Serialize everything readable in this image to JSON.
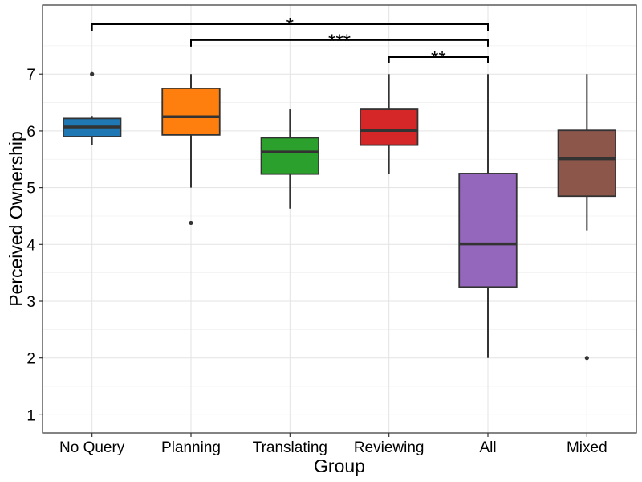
{
  "chart_data": {
    "type": "boxplot",
    "title": "",
    "xlabel": "Group",
    "ylabel": "Perceived Ownership",
    "ylim": [
      0.68,
      8.22
    ],
    "yticks": [
      1,
      2,
      3,
      4,
      5,
      6,
      7
    ],
    "grid": true,
    "legend": "none",
    "categories": [
      "No Query",
      "Planning",
      "Translating",
      "Reviewing",
      "All",
      "Mixed"
    ],
    "series": [
      {
        "category": "No Query",
        "color": "#1f77b4",
        "whisker_low": 5.75,
        "q1": 5.9,
        "median": 6.07,
        "q3": 6.22,
        "whisker_high": 6.25,
        "outliers": [
          7.0
        ]
      },
      {
        "category": "Planning",
        "color": "#ff7f0e",
        "whisker_low": 5.0,
        "q1": 5.93,
        "median": 6.25,
        "q3": 6.75,
        "whisker_high": 7.0,
        "outliers": [
          4.38
        ]
      },
      {
        "category": "Translating",
        "color": "#2ca02c",
        "whisker_low": 4.63,
        "q1": 5.24,
        "median": 5.63,
        "q3": 5.88,
        "whisker_high": 6.38,
        "outliers": []
      },
      {
        "category": "Reviewing",
        "color": "#d62728",
        "whisker_low": 5.24,
        "q1": 5.75,
        "median": 6.01,
        "q3": 6.38,
        "whisker_high": 7.0,
        "outliers": []
      },
      {
        "category": "All",
        "color": "#9467bd",
        "whisker_low": 2.0,
        "q1": 3.25,
        "median": 4.01,
        "q3": 5.25,
        "whisker_high": 7.0,
        "outliers": []
      },
      {
        "category": "Mixed",
        "color": "#8c564b",
        "whisker_low": 4.25,
        "q1": 4.85,
        "median": 5.51,
        "q3": 6.01,
        "whisker_high": 7.0,
        "outliers": [
          2.0
        ]
      }
    ],
    "significance": [
      {
        "from": "No Query",
        "to": "All",
        "y": 7.88,
        "label": "*"
      },
      {
        "from": "Planning",
        "to": "All",
        "y": 7.6,
        "label": "***"
      },
      {
        "from": "Reviewing",
        "to": "All",
        "y": 7.3,
        "label": "**"
      }
    ]
  }
}
